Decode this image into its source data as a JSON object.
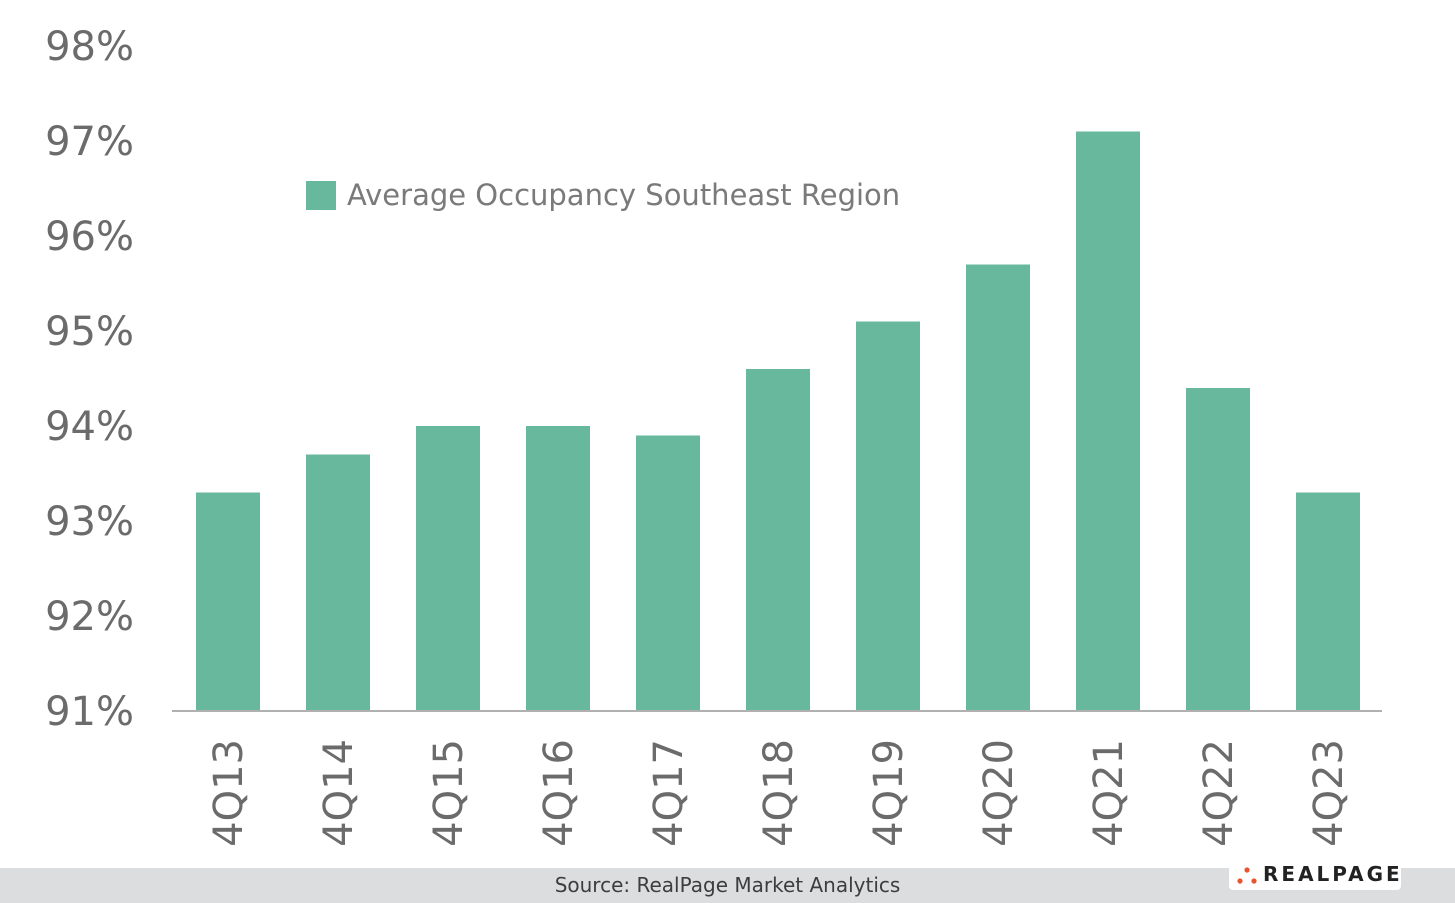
{
  "chart_data": {
    "type": "bar",
    "categories": [
      "4Q13",
      "4Q14",
      "4Q15",
      "4Q16",
      "4Q17",
      "4Q18",
      "4Q19",
      "4Q20",
      "4Q21",
      "4Q22",
      "4Q23"
    ],
    "series": [
      {
        "name": "Average Occupancy Southeast Region",
        "values": [
          93.3,
          93.7,
          94.0,
          94.0,
          93.9,
          94.6,
          95.1,
          95.7,
          97.1,
          94.4,
          93.3
        ],
        "color": "#67b89d"
      }
    ],
    "yticks": [
      "91%",
      "92%",
      "93%",
      "94%",
      "95%",
      "96%",
      "97%",
      "98%"
    ],
    "ylim": [
      91,
      98
    ],
    "grid": false,
    "legend_position": "top-left",
    "axis_color": "#b0b0b0",
    "tick_color": "#6b6b6b"
  },
  "footer": {
    "source": "Source: RealPage Market Analytics",
    "brand": "REALPAGE",
    "brand_dot_color": "#e8542e",
    "background": "#dcdddf"
  }
}
